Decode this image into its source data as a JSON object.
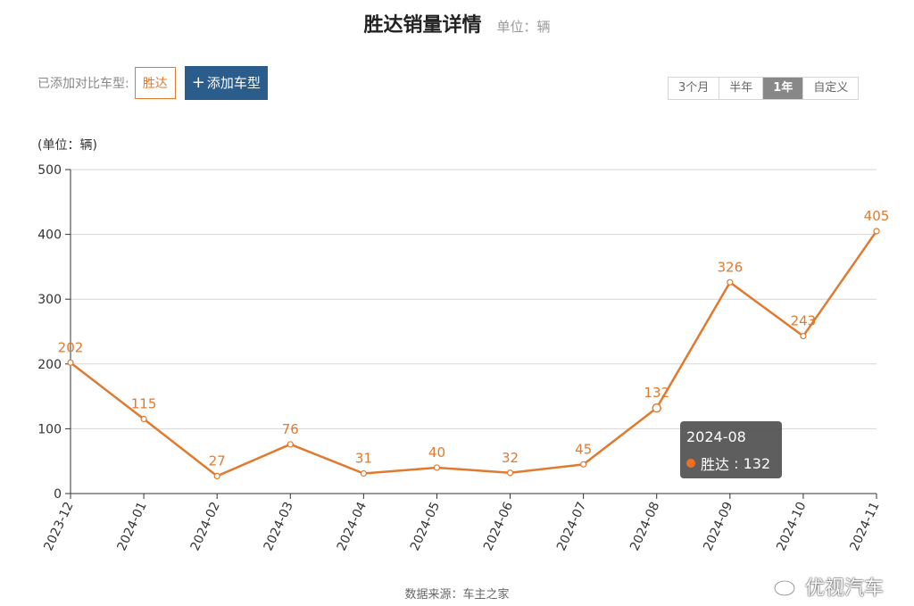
{
  "header": {
    "title": "胜达销量详情",
    "unit": "单位：辆"
  },
  "compare": {
    "label": "已添加对比车型:",
    "chip": "胜达",
    "add_button_plus": "+",
    "add_button": "添加车型"
  },
  "range_tabs": [
    {
      "label": "3个月",
      "active": false
    },
    {
      "label": "半年",
      "active": false
    },
    {
      "label": "1年",
      "active": true
    },
    {
      "label": "自定义",
      "active": false
    }
  ],
  "chart_data": {
    "type": "line",
    "unit_label": "(单位：辆)",
    "x": [
      "2023-12",
      "2024-01",
      "2024-02",
      "2024-03",
      "2024-04",
      "2024-05",
      "2024-06",
      "2024-07",
      "2024-08",
      "2024-09",
      "2024-10",
      "2024-11"
    ],
    "series": [
      {
        "name": "胜达",
        "values": [
          202,
          115,
          27,
          76,
          31,
          40,
          32,
          45,
          132,
          326,
          243,
          405
        ]
      }
    ],
    "ylim": [
      0,
      500
    ],
    "yticks": [
      0,
      100,
      200,
      300,
      400,
      500
    ],
    "grid": true,
    "color": "#e07a2e",
    "highlighted_x": "2024-08"
  },
  "tooltip": {
    "date": "2024-08",
    "series": "胜达",
    "value": "132"
  },
  "footer": {
    "source": "数据来源：车主之家"
  },
  "watermark": {
    "text": "优视汽车",
    "icon": "weibo-icon"
  }
}
